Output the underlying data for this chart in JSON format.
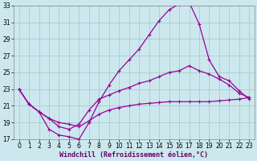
{
  "xlabel": "Windchill (Refroidissement éolien,°C)",
  "bg_color": "#cce8ee",
  "grid_color": "#aacccc",
  "line_color": "#990099",
  "xlim": [
    -0.5,
    23.5
  ],
  "ylim": [
    17,
    33
  ],
  "xticks": [
    0,
    1,
    2,
    3,
    4,
    5,
    6,
    7,
    8,
    9,
    10,
    11,
    12,
    13,
    14,
    15,
    16,
    17,
    18,
    19,
    20,
    21,
    22,
    23
  ],
  "yticks": [
    17,
    19,
    21,
    23,
    25,
    27,
    29,
    31,
    33
  ],
  "curve1_x": [
    0,
    1,
    2,
    3,
    4,
    5,
    6,
    7,
    8,
    9,
    10,
    11,
    12,
    13,
    14,
    15,
    16,
    17,
    18,
    19,
    20,
    21,
    22,
    23
  ],
  "curve1_y": [
    23.0,
    21.2,
    20.3,
    18.2,
    17.5,
    17.3,
    17.0,
    19.0,
    21.5,
    23.5,
    25.2,
    26.5,
    27.8,
    29.5,
    31.2,
    32.5,
    33.2,
    33.4,
    30.8,
    26.5,
    24.5,
    24.0,
    22.8,
    21.8
  ],
  "curve2_x": [
    0,
    1,
    2,
    3,
    4,
    5,
    6,
    7,
    8,
    9,
    10,
    11,
    12,
    13,
    14,
    15,
    16,
    17,
    18,
    19,
    20,
    21,
    22,
    23
  ],
  "curve2_y": [
    23.0,
    21.2,
    20.3,
    19.5,
    18.5,
    18.2,
    18.8,
    20.5,
    21.8,
    22.3,
    22.8,
    23.2,
    23.7,
    24.0,
    24.5,
    25.0,
    25.2,
    25.8,
    25.2,
    24.8,
    24.2,
    23.5,
    22.5,
    22.0
  ],
  "curve3_x": [
    0,
    1,
    2,
    3,
    4,
    5,
    6,
    7,
    8,
    9,
    10,
    11,
    12,
    13,
    14,
    15,
    16,
    17,
    18,
    19,
    20,
    21,
    22,
    23
  ],
  "curve3_y": [
    23.0,
    21.2,
    20.3,
    19.5,
    19.0,
    18.8,
    18.5,
    19.2,
    20.0,
    20.5,
    20.8,
    21.0,
    21.2,
    21.3,
    21.4,
    21.5,
    21.5,
    21.5,
    21.5,
    21.5,
    21.6,
    21.7,
    21.8,
    22.0
  ],
  "tick_fontsize": 5.5,
  "xlabel_fontsize": 6.0
}
